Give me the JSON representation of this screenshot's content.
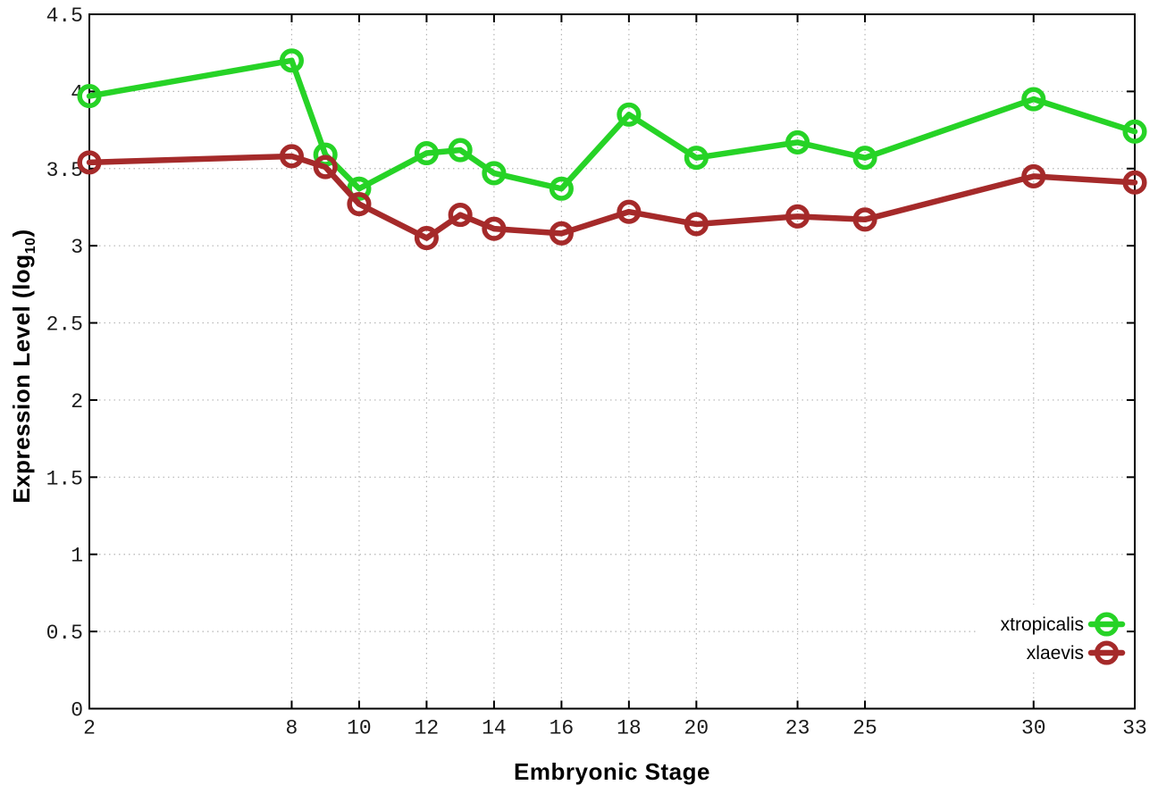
{
  "chart_data": {
    "type": "line",
    "title": "",
    "xlabel": "Embryonic Stage",
    "ylabel": "Expression Level (log10)",
    "ylabel_parts": {
      "prefix": "Expression Level (log",
      "sub": "10",
      "suffix": ")"
    },
    "x": [
      2,
      8,
      9,
      10,
      12,
      13,
      14,
      16,
      18,
      20,
      23,
      25,
      30,
      33
    ],
    "series": [
      {
        "name": "xtropicalis",
        "color": "#26d326",
        "values": [
          3.97,
          4.2,
          3.59,
          3.37,
          3.6,
          3.62,
          3.47,
          3.37,
          3.85,
          3.57,
          3.67,
          3.57,
          3.95,
          3.74
        ]
      },
      {
        "name": "xlaevis",
        "color": "#a52a2a",
        "values": [
          3.54,
          3.58,
          3.51,
          3.27,
          3.05,
          3.2,
          3.11,
          3.08,
          3.22,
          3.14,
          3.19,
          3.17,
          3.45,
          3.41
        ]
      }
    ],
    "xticks": [
      2,
      8,
      10,
      12,
      14,
      16,
      18,
      20,
      23,
      25,
      30,
      33
    ],
    "xtick_labels": [
      "2",
      "8",
      "10",
      "12",
      "14",
      "16",
      "18",
      "20",
      "23",
      "25",
      "30",
      "33"
    ],
    "yticks": [
      0,
      0.5,
      1,
      1.5,
      2,
      2.5,
      3,
      3.5,
      4,
      4.5
    ],
    "ytick_labels": [
      "0",
      "0.5",
      "1",
      "1.5",
      "2",
      "2.5",
      "3",
      "3.5",
      "4",
      "4.5"
    ],
    "xlim": [
      2,
      33
    ],
    "ylim": [
      0,
      4.5
    ],
    "grid": true,
    "legend_position": "inside-bottom-right",
    "marker": "open-circle",
    "colors": {
      "background": "#ffffff",
      "grid": "#b5b5b5",
      "axis": "#000000",
      "tick_text": "#1a1a1a"
    }
  }
}
